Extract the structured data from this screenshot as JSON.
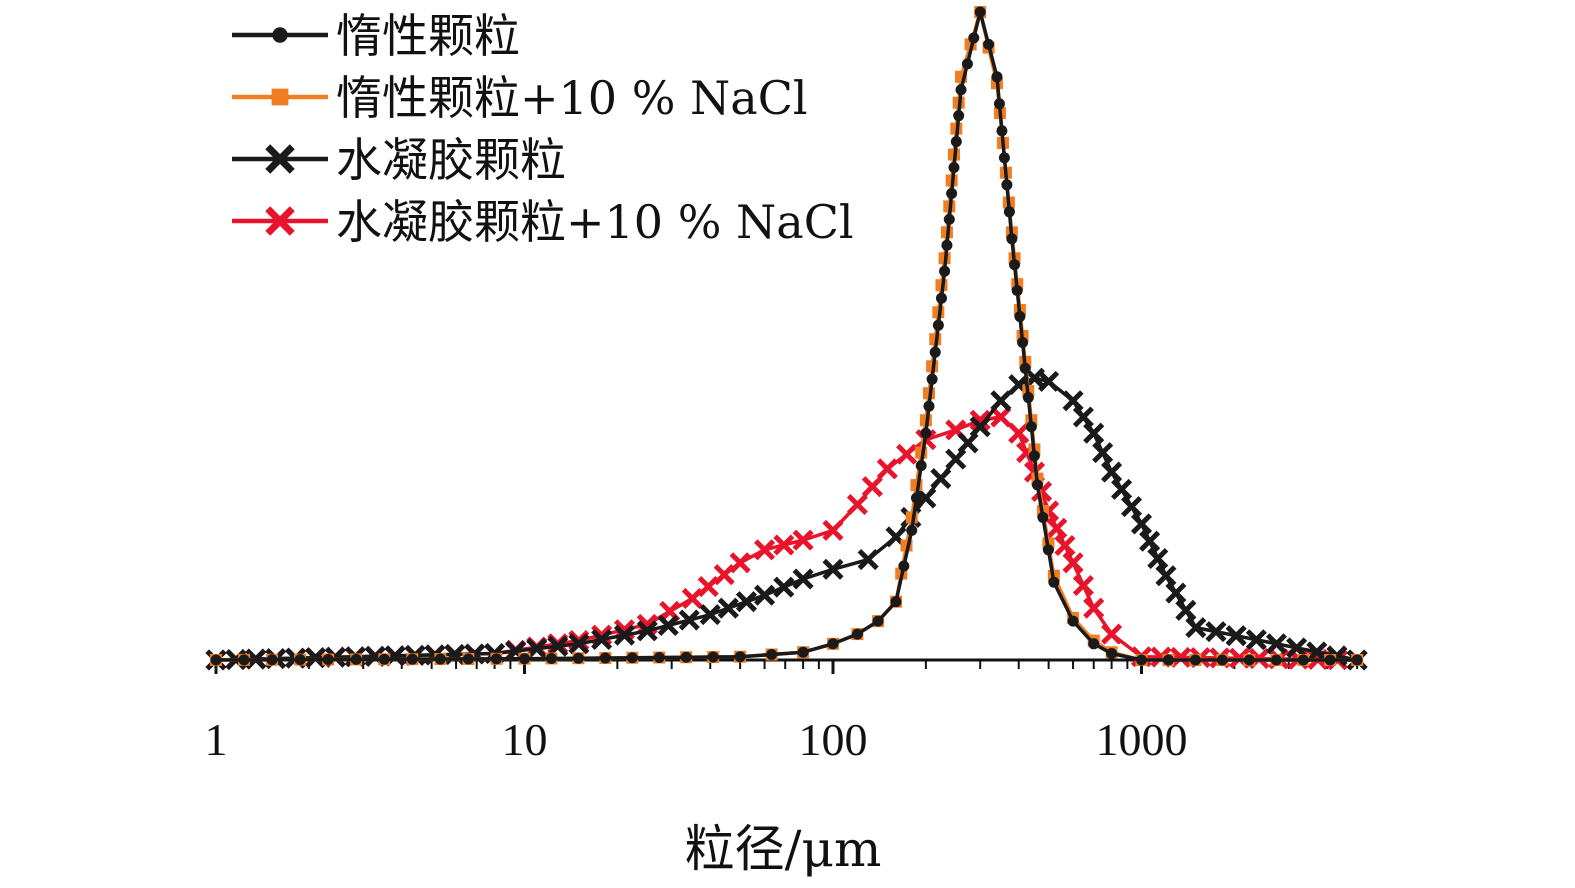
{
  "chart_data": {
    "type": "line",
    "title": "",
    "xlabel": "粒径/μm",
    "ylabel": "",
    "x_scale": "log",
    "xlim": [
      1,
      5000
    ],
    "ylim": [
      0,
      100
    ],
    "x_ticks": [
      {
        "value": 1,
        "label": "1"
      },
      {
        "value": 10,
        "label": "10"
      },
      {
        "value": 100,
        "label": "100"
      },
      {
        "value": 1000,
        "label": "1000"
      }
    ],
    "grid": false,
    "legend_position": "top-left",
    "series": [
      {
        "name": "惰性颗粒",
        "color": "#1a1a1a",
        "marker": "dot",
        "x": [
          1,
          10,
          50,
          80,
          100,
          120,
          140,
          160,
          180,
          200,
          230,
          260,
          300,
          340,
          380,
          420,
          460,
          520,
          600,
          700,
          800,
          1000,
          5000
        ],
        "y": [
          0,
          0.2,
          0.5,
          1.2,
          2.5,
          4,
          6,
          9,
          20,
          35,
          60,
          88,
          100,
          90,
          65,
          45,
          27,
          12,
          6,
          2.5,
          1,
          0,
          0
        ]
      },
      {
        "name": "惰性颗粒+10 % NaCl",
        "color": "#f07d22",
        "marker": "square",
        "x": [
          1,
          10,
          50,
          80,
          100,
          120,
          140,
          160,
          180,
          200,
          230,
          260,
          300,
          340,
          380,
          420,
          460,
          520,
          600,
          700,
          800,
          1000,
          5000
        ],
        "y": [
          0,
          0.2,
          0.5,
          1.2,
          2.5,
          4,
          6,
          9,
          22,
          37,
          62,
          90,
          100,
          89,
          66,
          46,
          28,
          13,
          6.5,
          3,
          1.2,
          0,
          0
        ]
      },
      {
        "name": "水凝胶颗粒",
        "color": "#1a1a1a",
        "marker": "x",
        "x": [
          1,
          8,
          15,
          25,
          40,
          60,
          80,
          100,
          130,
          160,
          200,
          250,
          300,
          350,
          400,
          450,
          500,
          600,
          700,
          800,
          1000,
          1200,
          1500,
          5000
        ],
        "y": [
          0,
          1,
          2.5,
          4.5,
          7,
          10,
          12.5,
          14,
          15.5,
          19,
          25,
          31,
          36,
          40,
          42.5,
          43.5,
          43,
          40,
          35,
          29,
          21,
          13,
          5,
          0
        ]
      },
      {
        "name": "水凝胶颗粒+10 % NaCl",
        "color": "#e8142c",
        "marker": "x",
        "x": [
          1,
          8,
          15,
          25,
          35,
          50,
          60,
          80,
          100,
          120,
          150,
          200,
          250,
          300,
          350,
          400,
          450,
          500,
          600,
          700,
          800,
          1000,
          5000
        ],
        "y": [
          0,
          1,
          3,
          5.5,
          9.5,
          15,
          17,
          18.5,
          20,
          24,
          29.5,
          34,
          35.5,
          37,
          37.5,
          35,
          29,
          23,
          15,
          8,
          4,
          0.5,
          0
        ]
      }
    ]
  }
}
